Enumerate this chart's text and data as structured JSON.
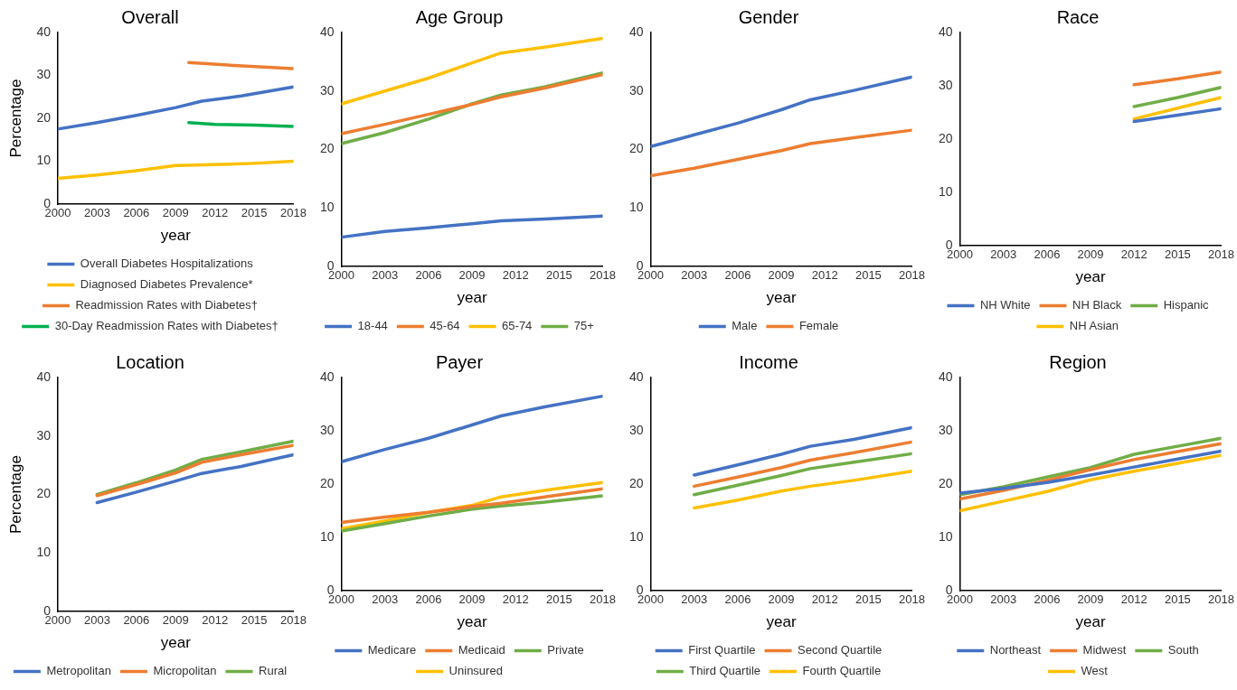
{
  "chart_data": [
    {
      "type": "line",
      "title": "Overall",
      "xlabel": "year",
      "ylabel": "Percentage",
      "xlim": [
        2000,
        2018
      ],
      "xticks": [
        2000,
        2003,
        2006,
        2009,
        2012,
        2015,
        2018
      ],
      "ylim": [
        0,
        40
      ],
      "yticks": [
        0,
        10,
        20,
        30,
        40
      ],
      "grid": false,
      "legend": "bottom",
      "marker": "none",
      "line_style": "solid",
      "series": [
        {
          "name": "Overall Diabetes Hospitalizations",
          "color": "#4472c4",
          "x": [
            2000,
            2003,
            2006,
            2009,
            2011,
            2014,
            2018
          ],
          "values": [
            17.5,
            19,
            20.7,
            22.5,
            24,
            25.2,
            27.3
          ]
        },
        {
          "name": "Diagnosed Diabetes Prevalence*",
          "color": "#ffc000",
          "x": [
            2000,
            2003,
            2006,
            2009,
            2012,
            2015,
            2018
          ],
          "values": [
            6,
            6.8,
            7.8,
            9,
            9.2,
            9.5,
            10
          ]
        },
        {
          "name": "Readmission Rates with Diabetes†",
          "color": "#ed7d31",
          "x": [
            2010,
            2013,
            2018
          ],
          "values": [
            33,
            32.4,
            31.6
          ]
        },
        {
          "name": "30-Day Readmission Rates with Diabetes†",
          "color": "#00b050",
          "x": [
            2010,
            2012,
            2015,
            2018
          ],
          "values": [
            19,
            18.6,
            18.4,
            18.1
          ]
        }
      ]
    },
    {
      "type": "line",
      "title": "Age Group",
      "xlabel": "year",
      "xlim": [
        2000,
        2018
      ],
      "xticks": [
        2000,
        2003,
        2006,
        2009,
        2012,
        2015,
        2018
      ],
      "ylim": [
        0,
        40
      ],
      "yticks": [
        0,
        10,
        20,
        30,
        40
      ],
      "grid": false,
      "legend": "bottom",
      "marker": "none",
      "line_style": "solid",
      "series": [
        {
          "name": "18-44",
          "color": "#4472c4",
          "x": [
            2000,
            2003,
            2006,
            2009,
            2011,
            2014,
            2018
          ],
          "values": [
            5,
            6,
            6.6,
            7.3,
            7.8,
            8.1,
            8.6
          ]
        },
        {
          "name": "45-64",
          "color": "#ed7d31",
          "x": [
            2000,
            2003,
            2006,
            2009,
            2011,
            2014,
            2018
          ],
          "values": [
            22.7,
            24.3,
            26,
            27.7,
            29,
            30.5,
            32.8
          ]
        },
        {
          "name": "65-74",
          "color": "#ffc000",
          "x": [
            2000,
            2003,
            2006,
            2009,
            2011,
            2014,
            2018
          ],
          "values": [
            27.8,
            30,
            32.2,
            34.8,
            36.5,
            37.5,
            39
          ]
        },
        {
          "name": "75+",
          "color": "#70ad47",
          "x": [
            2000,
            2003,
            2006,
            2009,
            2011,
            2014,
            2018
          ],
          "values": [
            21,
            22.9,
            25.2,
            27.8,
            29.3,
            30.7,
            33.1
          ]
        }
      ]
    },
    {
      "type": "line",
      "title": "Gender",
      "xlabel": "year",
      "xlim": [
        2000,
        2018
      ],
      "xticks": [
        2000,
        2003,
        2006,
        2009,
        2012,
        2015,
        2018
      ],
      "ylim": [
        0,
        40
      ],
      "yticks": [
        0,
        10,
        20,
        30,
        40
      ],
      "grid": false,
      "legend": "bottom",
      "marker": "none",
      "line_style": "solid",
      "series": [
        {
          "name": "Male",
          "color": "#4472c4",
          "x": [
            2000,
            2003,
            2006,
            2009,
            2011,
            2014,
            2018
          ],
          "values": [
            20.5,
            22.5,
            24.5,
            26.8,
            28.5,
            30.1,
            32.4
          ]
        },
        {
          "name": "Female",
          "color": "#ed7d31",
          "x": [
            2000,
            2003,
            2006,
            2009,
            2011,
            2014,
            2018
          ],
          "values": [
            15.5,
            16.8,
            18.3,
            19.8,
            21,
            22,
            23.3
          ]
        }
      ]
    },
    {
      "type": "line",
      "title": "Race",
      "xlabel": "year",
      "xlim": [
        2000,
        2018
      ],
      "xticks": [
        2000,
        2003,
        2006,
        2009,
        2012,
        2015,
        2018
      ],
      "ylim": [
        0,
        40
      ],
      "yticks": [
        0,
        10,
        20,
        30,
        40
      ],
      "grid": false,
      "legend": "bottom",
      "marker": "none",
      "line_style": "solid",
      "series": [
        {
          "name": "NH White",
          "color": "#4472c4",
          "x": [
            2012,
            2015,
            2018
          ],
          "values": [
            23.3,
            24.5,
            25.7
          ]
        },
        {
          "name": "NH Black",
          "color": "#ed7d31",
          "x": [
            2012,
            2015,
            2018
          ],
          "values": [
            30.2,
            31.3,
            32.6
          ]
        },
        {
          "name": "Hispanic",
          "color": "#70ad47",
          "x": [
            2012,
            2015,
            2018
          ],
          "values": [
            26.1,
            27.8,
            29.7
          ]
        },
        {
          "name": "NH Asian",
          "color": "#ffc000",
          "x": [
            2012,
            2015,
            2018
          ],
          "values": [
            23.8,
            25.8,
            27.8
          ]
        }
      ]
    },
    {
      "type": "line",
      "title": "Location",
      "xlabel": "year",
      "ylabel": "Percentage",
      "xlim": [
        2000,
        2018
      ],
      "xticks": [
        2000,
        2003,
        2006,
        2009,
        2012,
        2015,
        2018
      ],
      "ylim": [
        0,
        40
      ],
      "yticks": [
        0,
        10,
        20,
        30,
        40
      ],
      "grid": false,
      "legend": "bottom",
      "marker": "none",
      "line_style": "solid",
      "series": [
        {
          "name": "Metropolitan",
          "color": "#4472c4",
          "x": [
            2003,
            2006,
            2009,
            2011,
            2014,
            2018
          ],
          "values": [
            18.6,
            20.4,
            22.3,
            23.6,
            24.8,
            26.8
          ]
        },
        {
          "name": "Micropolitan",
          "color": "#ed7d31",
          "x": [
            2003,
            2006,
            2009,
            2011,
            2014,
            2018
          ],
          "values": [
            19.8,
            21.7,
            23.7,
            25.5,
            26.8,
            28.4
          ]
        },
        {
          "name": "Rural",
          "color": "#70ad47",
          "x": [
            2003,
            2006,
            2009,
            2011,
            2014,
            2018
          ],
          "values": [
            20,
            22,
            24.2,
            26,
            27.3,
            29.1
          ]
        }
      ]
    },
    {
      "type": "line",
      "title": "Payer",
      "xlabel": "year",
      "xlim": [
        2000,
        2018
      ],
      "xticks": [
        2000,
        2003,
        2006,
        2009,
        2012,
        2015,
        2018
      ],
      "ylim": [
        0,
        40
      ],
      "yticks": [
        0,
        10,
        20,
        30,
        40
      ],
      "grid": false,
      "legend": "bottom",
      "marker": "none",
      "line_style": "solid",
      "series": [
        {
          "name": "Medicare",
          "color": "#4472c4",
          "x": [
            2000,
            2003,
            2006,
            2009,
            2011,
            2014,
            2018
          ],
          "values": [
            24.2,
            26.5,
            28.6,
            31.1,
            32.8,
            34.5,
            36.5
          ]
        },
        {
          "name": "Medicaid",
          "color": "#ed7d31",
          "x": [
            2000,
            2003,
            2006,
            2009,
            2011,
            2014,
            2018
          ],
          "values": [
            12.8,
            13.8,
            14.7,
            15.8,
            16.4,
            17.6,
            19.1
          ]
        },
        {
          "name": "Private",
          "color": "#70ad47",
          "x": [
            2000,
            2003,
            2006,
            2009,
            2011,
            2014,
            2018
          ],
          "values": [
            11.2,
            12.6,
            14,
            15.3,
            15.9,
            16.6,
            17.8
          ]
        },
        {
          "name": "Uninsured",
          "color": "#ffc000",
          "x": [
            2000,
            2003,
            2006,
            2009,
            2011,
            2014,
            2018
          ],
          "values": [
            11.6,
            13.1,
            14.7,
            16,
            17.6,
            18.8,
            20.3
          ]
        }
      ]
    },
    {
      "type": "line",
      "title": "Income",
      "xlabel": "year",
      "xlim": [
        2000,
        2018
      ],
      "xticks": [
        2000,
        2003,
        2006,
        2009,
        2012,
        2015,
        2018
      ],
      "ylim": [
        0,
        40
      ],
      "yticks": [
        0,
        10,
        20,
        30,
        40
      ],
      "grid": false,
      "legend": "bottom",
      "marker": "none",
      "line_style": "solid",
      "series": [
        {
          "name": "First Quartile",
          "color": "#4472c4",
          "x": [
            2003,
            2006,
            2009,
            2011,
            2014,
            2018
          ],
          "values": [
            21.7,
            23.6,
            25.6,
            27.1,
            28.4,
            30.6
          ]
        },
        {
          "name": "Second Quartile",
          "color": "#ed7d31",
          "x": [
            2003,
            2006,
            2009,
            2011,
            2014,
            2018
          ],
          "values": [
            19.6,
            21.3,
            23.1,
            24.5,
            25.9,
            27.9
          ]
        },
        {
          "name": "Third Quartile",
          "color": "#70ad47",
          "x": [
            2003,
            2006,
            2009,
            2011,
            2014,
            2018
          ],
          "values": [
            18,
            19.8,
            21.6,
            22.9,
            24.1,
            25.7
          ]
        },
        {
          "name": "Fourth Quartile",
          "color": "#ffc000",
          "x": [
            2003,
            2006,
            2009,
            2011,
            2014,
            2018
          ],
          "values": [
            15.5,
            17,
            18.7,
            19.6,
            20.7,
            22.4
          ]
        }
      ]
    },
    {
      "type": "line",
      "title": "Region",
      "xlabel": "year",
      "xlim": [
        2000,
        2018
      ],
      "xticks": [
        2000,
        2003,
        2006,
        2009,
        2012,
        2015,
        2018
      ],
      "ylim": [
        0,
        40
      ],
      "yticks": [
        0,
        10,
        20,
        30,
        40
      ],
      "grid": false,
      "legend": "bottom",
      "marker": "none",
      "line_style": "solid",
      "series": [
        {
          "name": "Northeast",
          "color": "#4472c4",
          "x": [
            2000,
            2003,
            2006,
            2009,
            2012,
            2015,
            2018
          ],
          "values": [
            18.3,
            19.2,
            20.3,
            21.7,
            23.2,
            24.7,
            26.2
          ]
        },
        {
          "name": "Midwest",
          "color": "#ed7d31",
          "x": [
            2000,
            2003,
            2006,
            2009,
            2012,
            2015,
            2018
          ],
          "values": [
            17.2,
            18.8,
            20.7,
            22.7,
            24.6,
            26.1,
            27.6
          ]
        },
        {
          "name": "South",
          "color": "#70ad47",
          "x": [
            2000,
            2003,
            2006,
            2009,
            2012,
            2015,
            2018
          ],
          "values": [
            18,
            19.5,
            21.3,
            23.1,
            25.6,
            27.1,
            28.6
          ]
        },
        {
          "name": "West",
          "color": "#ffc000",
          "x": [
            2000,
            2003,
            2006,
            2009,
            2012,
            2015,
            2018
          ],
          "values": [
            15,
            16.8,
            18.6,
            20.8,
            22.4,
            23.9,
            25.4
          ]
        }
      ]
    }
  ]
}
